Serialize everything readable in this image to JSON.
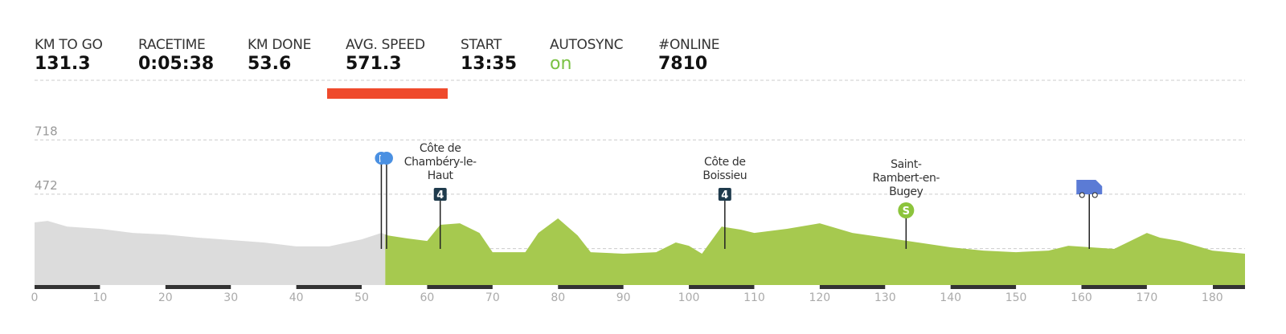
{
  "stats": [
    {
      "label": "KM TO GO",
      "value": "131.3"
    },
    {
      "label": "RACETIME",
      "value": "0:05:38"
    },
    {
      "label": "KM DONE",
      "value": "53.6"
    },
    {
      "label": "AVG. SPEED",
      "value": "571.3"
    },
    {
      "label": "START",
      "value": "13:35"
    },
    {
      "label": "AUTOSYNC",
      "value": "on"
    },
    {
      "label": "#ONLINE",
      "value": "7810"
    }
  ],
  "chart_data": {
    "type": "area",
    "xlim": [
      0,
      185
    ],
    "ylim": [
      60,
      770
    ],
    "xticks": [
      0,
      10,
      20,
      30,
      40,
      50,
      60,
      70,
      80,
      90,
      100,
      110,
      120,
      130,
      140,
      150,
      160,
      170,
      180
    ],
    "yticks": [
      225,
      472,
      718
    ],
    "grid": true,
    "series": [
      {
        "color": "#dcdcdc",
        "x": [
          0,
          2,
          5,
          10,
          15,
          20,
          25,
          30,
          35,
          40,
          45,
          50,
          53,
          53.6
        ],
        "values": [
          344,
          351,
          325,
          315,
          296,
          289,
          275,
          264,
          253,
          235,
          235,
          267,
          296,
          290
        ]
      },
      {
        "color": "#a6c94f",
        "x": [
          53.6,
          54,
          57,
          60,
          62,
          65,
          68,
          70,
          75,
          77,
          80,
          83,
          85,
          90,
          95,
          98,
          100,
          102,
          105,
          108,
          110,
          115,
          120,
          125,
          130,
          135,
          140,
          145,
          150,
          155,
          158,
          165,
          170,
          172,
          175,
          180,
          185
        ],
        "values": [
          290,
          285,
          271,
          260,
          333,
          340,
          296,
          209,
          209,
          296,
          362,
          285,
          209,
          202,
          209,
          253,
          238,
          202,
          325,
          311,
          296,
          315,
          340,
          296,
          275,
          253,
          231,
          216,
          209,
          216,
          238,
          224,
          296,
          275,
          260,
          216,
          202
        ]
      }
    ],
    "markers": [
      {
        "x": 53,
        "icon": "pin",
        "badge": "P"
      },
      {
        "x": 53.8,
        "icon": "pin"
      },
      {
        "x": 62,
        "icon": "climb",
        "name": "Côte de Chambéry-le-Haut",
        "badge": "4"
      },
      {
        "x": 105.5,
        "icon": "climb",
        "name": "Côte de Boissieu",
        "badge": "4"
      },
      {
        "x": 133.2,
        "icon": "sprint",
        "name": "Saint-Rambert-en-Bugey",
        "badge": "S"
      },
      {
        "x": 161.2,
        "icon": "van"
      }
    ]
  }
}
